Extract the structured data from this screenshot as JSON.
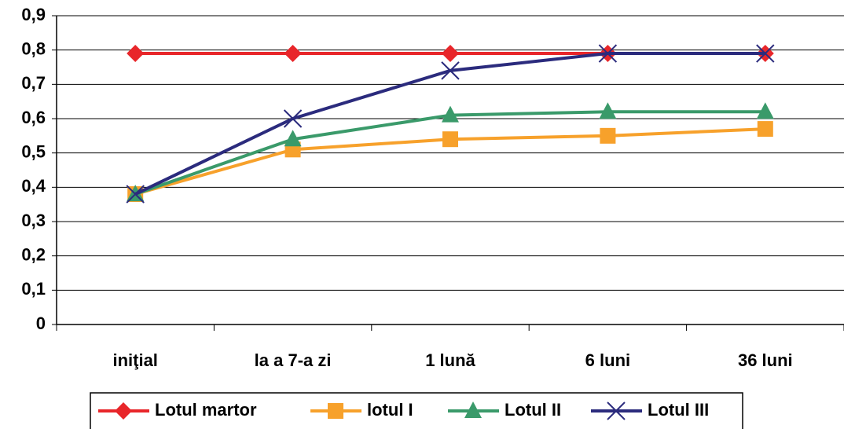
{
  "chart_data": {
    "type": "line",
    "categories": [
      "iniţial",
      "la a 7-a zi",
      "1 lună",
      "6 luni",
      "36 luni"
    ],
    "series": [
      {
        "name": "Lotul martor",
        "color": "#e8262a",
        "marker": "diamond",
        "values": [
          0.79,
          0.79,
          0.79,
          0.79,
          0.79
        ]
      },
      {
        "name": "lotul I",
        "color": "#f7a12b",
        "marker": "square",
        "values": [
          0.38,
          0.51,
          0.54,
          0.55,
          0.57
        ]
      },
      {
        "name": "Lotul II",
        "color": "#3a9a6a",
        "marker": "triangle",
        "values": [
          0.38,
          0.54,
          0.61,
          0.62,
          0.62
        ]
      },
      {
        "name": "Lotul III",
        "color": "#2b2b7d",
        "marker": "x",
        "values": [
          0.38,
          0.6,
          0.74,
          0.79,
          0.79
        ]
      }
    ],
    "ylim": [
      0,
      0.9
    ],
    "yticks": [
      0,
      {
        "value": 0.1,
        "label": "0,1"
      },
      {
        "value": 0.2,
        "label": "0,2"
      },
      {
        "value": 0.3,
        "label": "0,3"
      },
      {
        "value": 0.4,
        "label": "0,4"
      },
      {
        "value": 0.5,
        "label": "0,5"
      },
      {
        "value": 0.6,
        "label": "0,6"
      },
      {
        "value": 0.7,
        "label": "0,7"
      },
      {
        "value": 0.8,
        "label": "0,8"
      },
      {
        "value": 0.9,
        "label": "0,9"
      }
    ],
    "grid": true,
    "legend": "bottom"
  }
}
